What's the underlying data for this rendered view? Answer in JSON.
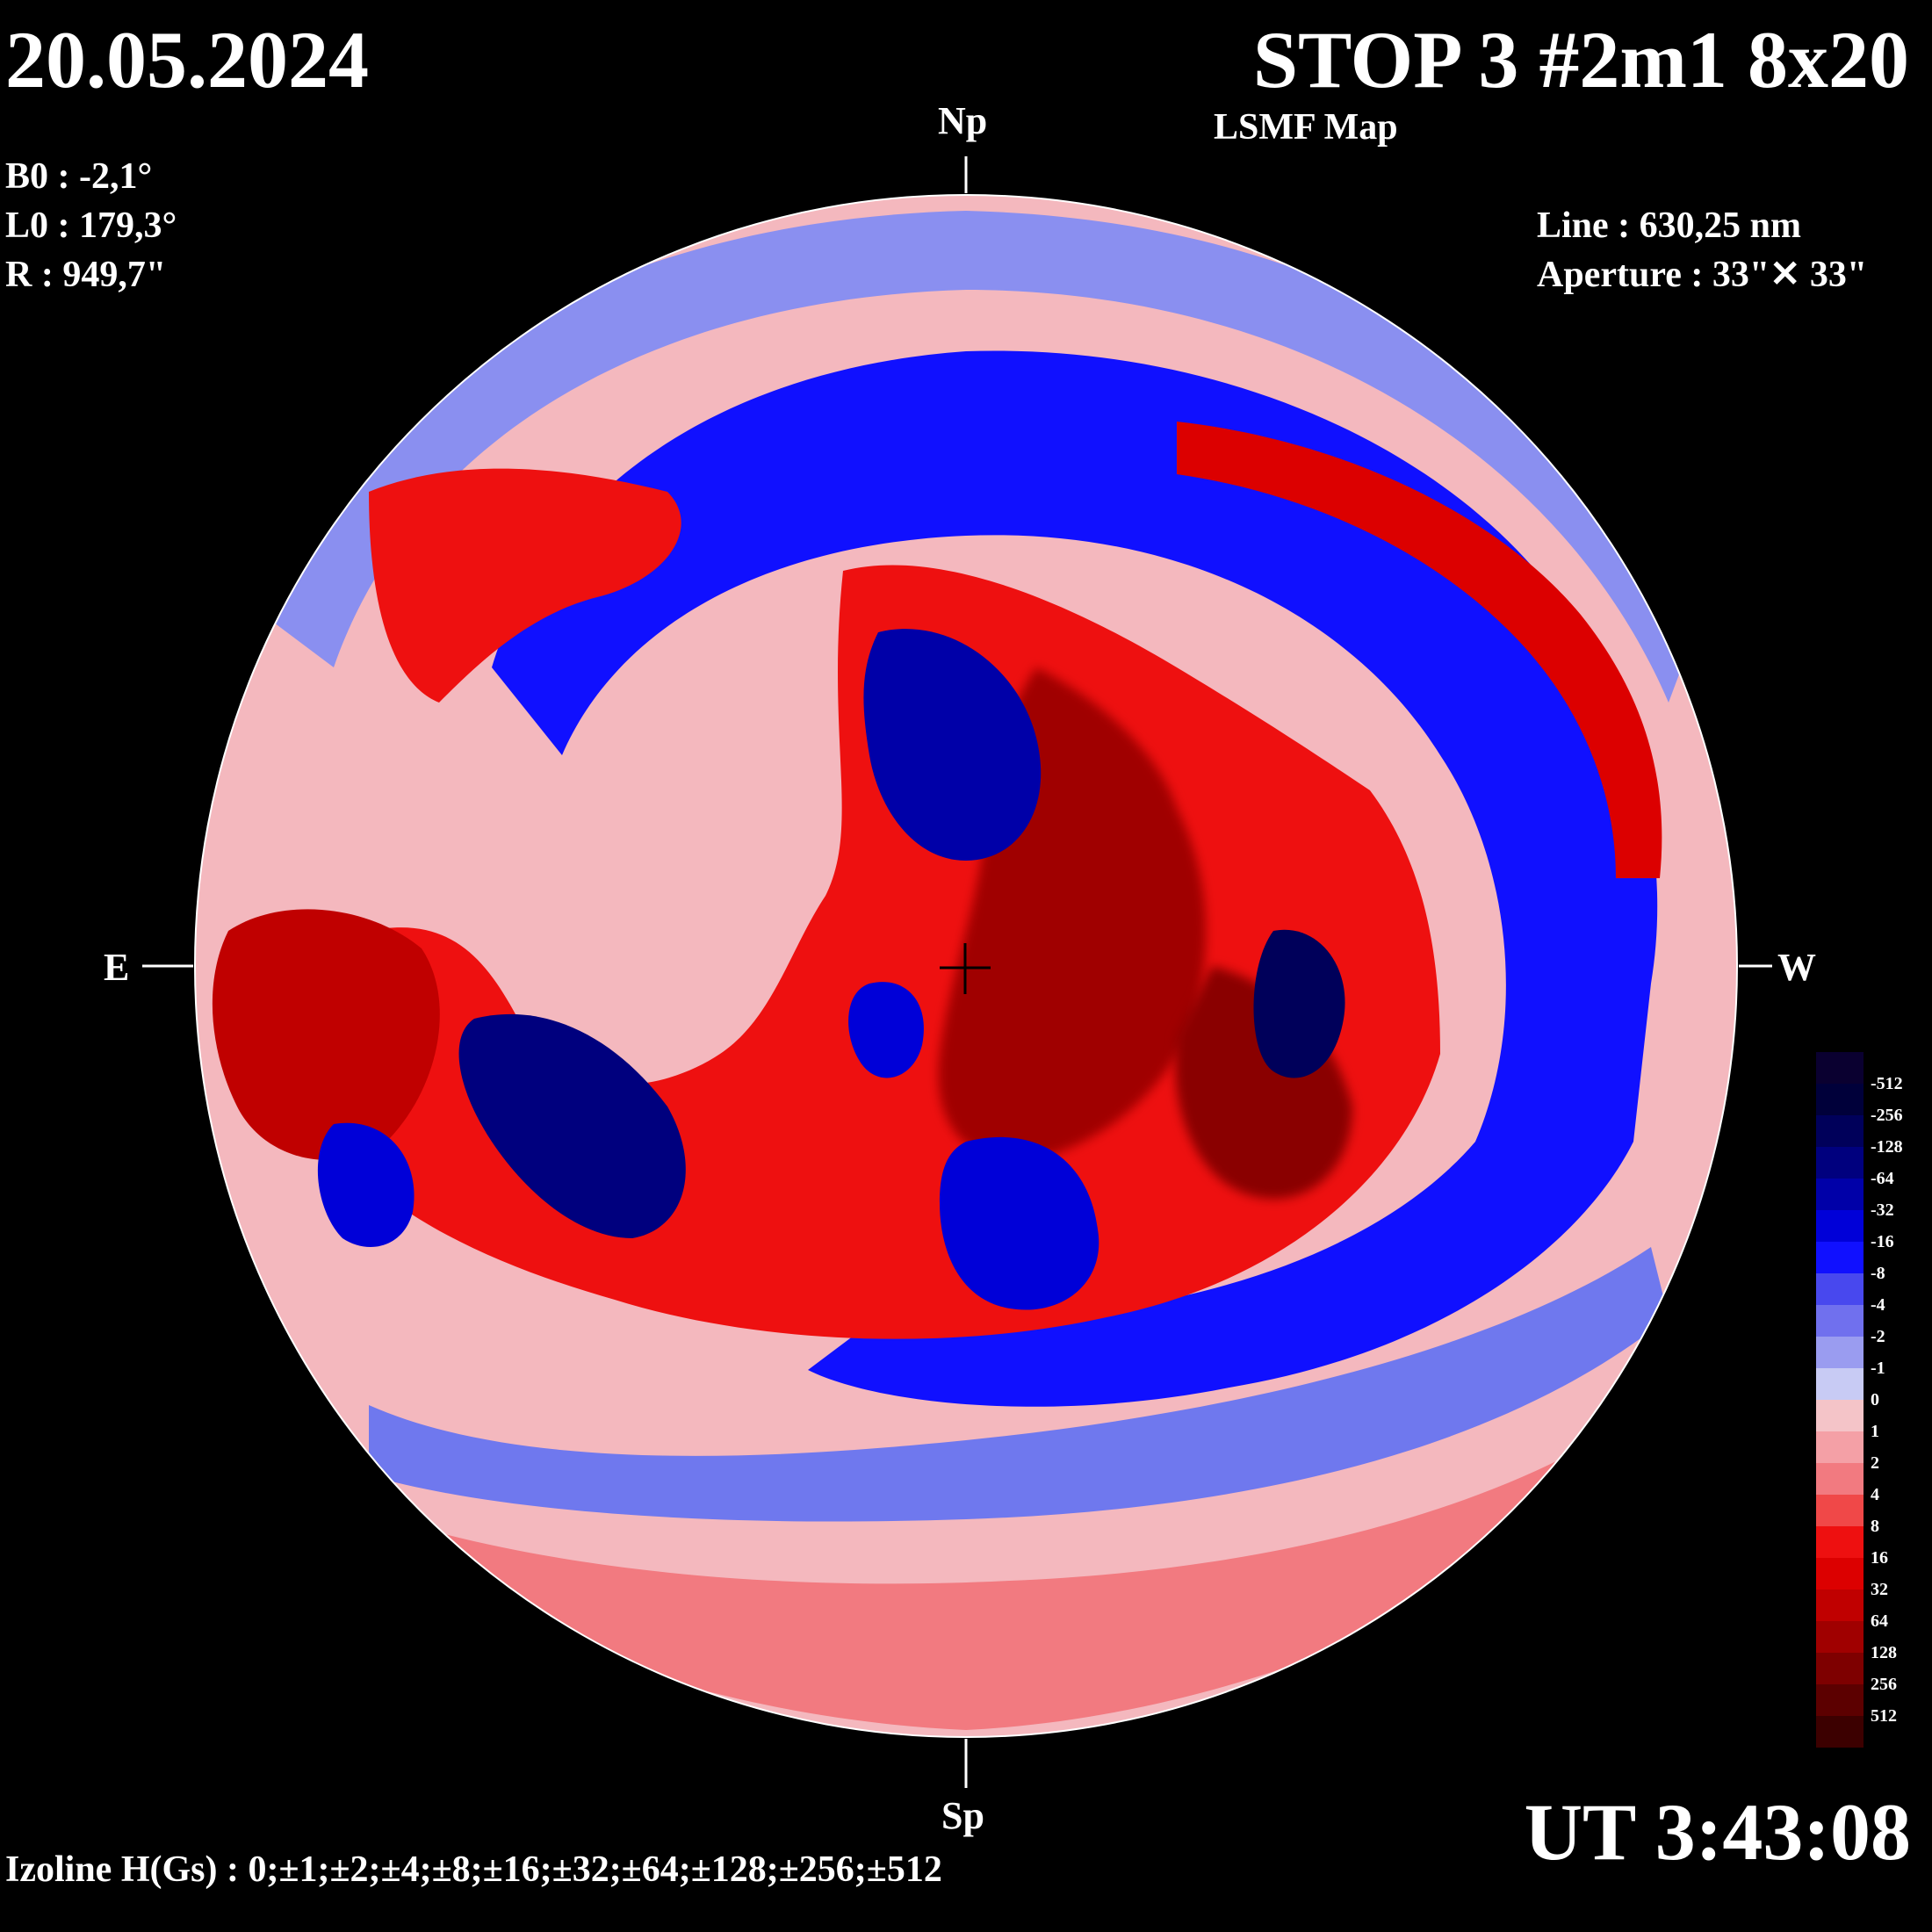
{
  "header": {
    "date": "20.05.2024",
    "title": "STOP 3 #2m1 8x20",
    "subtitle": "LSMF  Map"
  },
  "ephemeris": {
    "b0": "B0 : -2,1°",
    "l0": "L0 : 179,3°",
    "r": "R  : 949,7\""
  },
  "observation": {
    "line": "Line :  630,25 nm",
    "aperture": "Aperture : 33\"✕ 33\""
  },
  "directions": {
    "north": "Np",
    "south": "Sp",
    "east": "E",
    "west": "W"
  },
  "time": "UT 3:43:08",
  "izoline": "Izoline H(Gs) : 0;±1;±2;±4;±8;±16;±32;±64;±128;±256;±512",
  "colorbar": {
    "labels": [
      "-512",
      "-256",
      "-128",
      "-64",
      "-32",
      "-16",
      "-8",
      "-4",
      "-2",
      "-1",
      "0",
      "1",
      "2",
      "4",
      "8",
      "16",
      "32",
      "64",
      "128",
      "256",
      "512"
    ],
    "colors": [
      "#0a0030",
      "#00003a",
      "#00005a",
      "#00007e",
      "#0000a8",
      "#0000d8",
      "#1010ff",
      "#4848ee",
      "#7070ee",
      "#9a9cf0",
      "#c8cbf4",
      "#f4c4c8",
      "#f4a0a6",
      "#f27a80",
      "#f04848",
      "#ee1010",
      "#dc0000",
      "#c00000",
      "#a00000",
      "#7e0000",
      "#5c0000",
      "#3c0000"
    ]
  },
  "map_colors": {
    "positive_weak": "#f4a0a6",
    "positive": "#ee1010",
    "positive_strong": "#a00000",
    "negative_weak": "#9a9cf0",
    "negative": "#1010ff",
    "negative_strong": "#00005a",
    "zero": "#ffffff",
    "background": "#000000"
  }
}
